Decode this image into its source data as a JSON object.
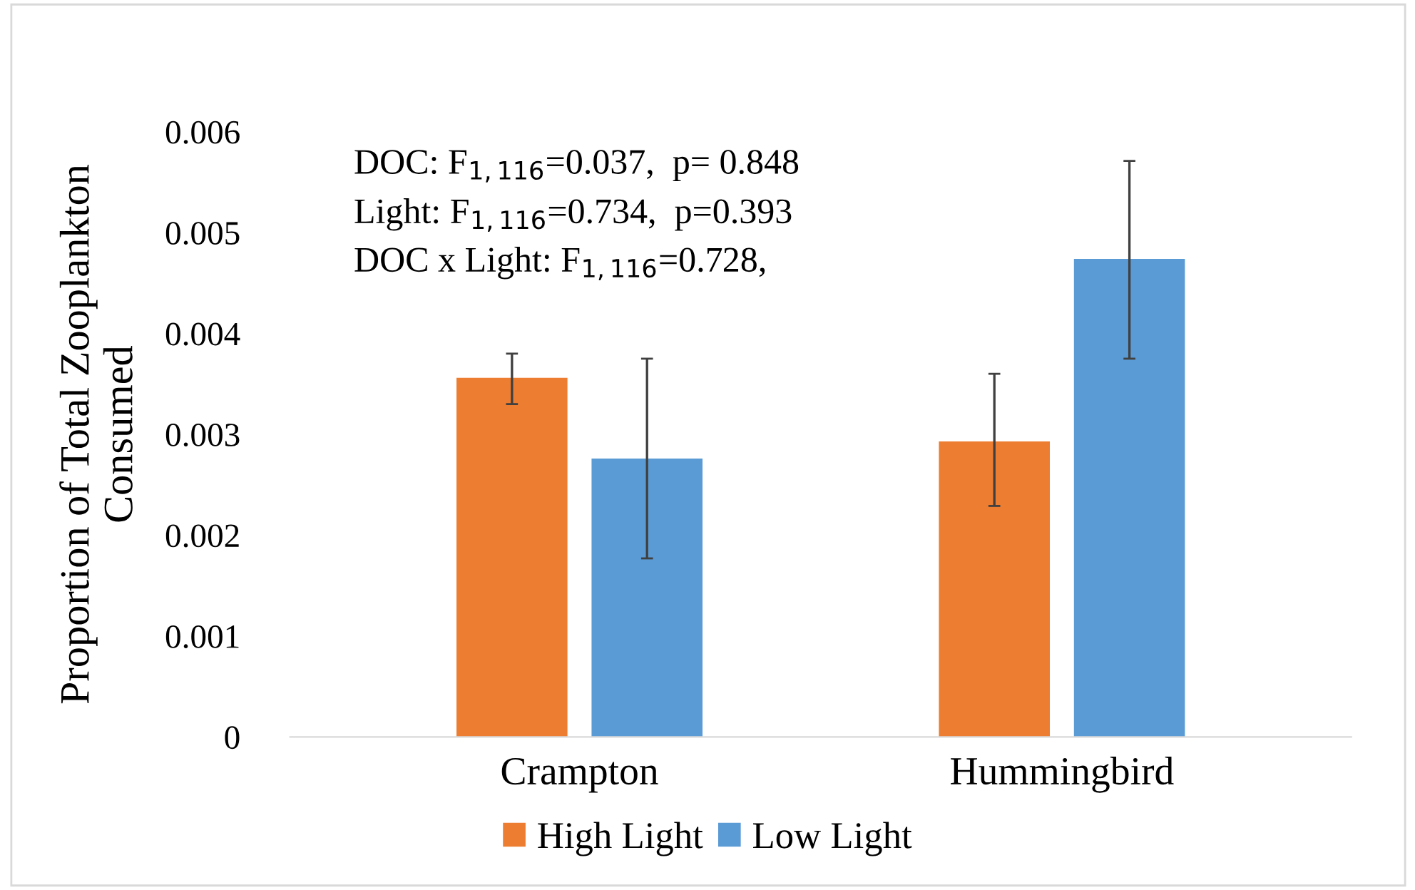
{
  "chart_data": {
    "type": "bar",
    "ylabel": "Proportion of Total Zooplankton\nConsumed",
    "categories": [
      "Crampton",
      "Hummingbird"
    ],
    "series": [
      {
        "name": "High Light",
        "color": "#ed7d31",
        "values": [
          0.00356,
          0.00293
        ],
        "errors": [
          [
            0.0033,
            0.0038
          ],
          [
            0.00229,
            0.0036
          ]
        ]
      },
      {
        "name": "Low Light",
        "color": "#5b9bd5",
        "values": [
          0.00276,
          0.00474
        ],
        "errors": [
          [
            0.00177,
            0.00375
          ],
          [
            0.00375,
            0.00571
          ]
        ]
      }
    ],
    "ylim": [
      0,
      0.006
    ],
    "yticks": [
      0,
      0.001,
      0.002,
      0.003,
      0.004,
      0.005,
      0.006
    ],
    "grid": false,
    "legend": "bottom",
    "annotations": [
      "DOC: F$_{1,116}$=0.037,  p= 0.848",
      "Light: F$_{1,116}$=0.734,  p=0.393",
      "DOC x Light: F$_{1,116}$=0.728,"
    ]
  }
}
